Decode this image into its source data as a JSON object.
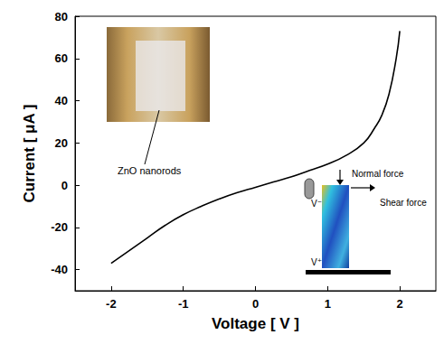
{
  "chart_data": {
    "type": "line",
    "x_label": "Voltage [ V ]",
    "y_label": "Current [ μA ]",
    "x": [
      -2,
      -1.75,
      -1.5,
      -1.25,
      -1,
      -0.75,
      -0.5,
      -0.25,
      0,
      0.25,
      0.5,
      0.75,
      1,
      1.25,
      1.5,
      1.65,
      1.75,
      1.85,
      1.95,
      2
    ],
    "values": [
      -37,
      -31,
      -25,
      -19,
      -14,
      -10,
      -6.5,
      -3.5,
      -1,
      1.5,
      4,
      7,
      10,
      14,
      20,
      27,
      33,
      43,
      60,
      73
    ],
    "color": "#000000",
    "xlim": [
      -2.5,
      2.5
    ],
    "xticks": [
      -2,
      -1,
      0,
      1,
      2
    ],
    "ylim": [
      -50,
      80
    ],
    "yticks": [
      -40,
      -20,
      0,
      20,
      40,
      60,
      80
    ],
    "grid": false,
    "annotations": [
      "ZnO nanorods",
      "Normal force",
      "Shear force",
      "V⁻",
      "V⁺"
    ]
  }
}
